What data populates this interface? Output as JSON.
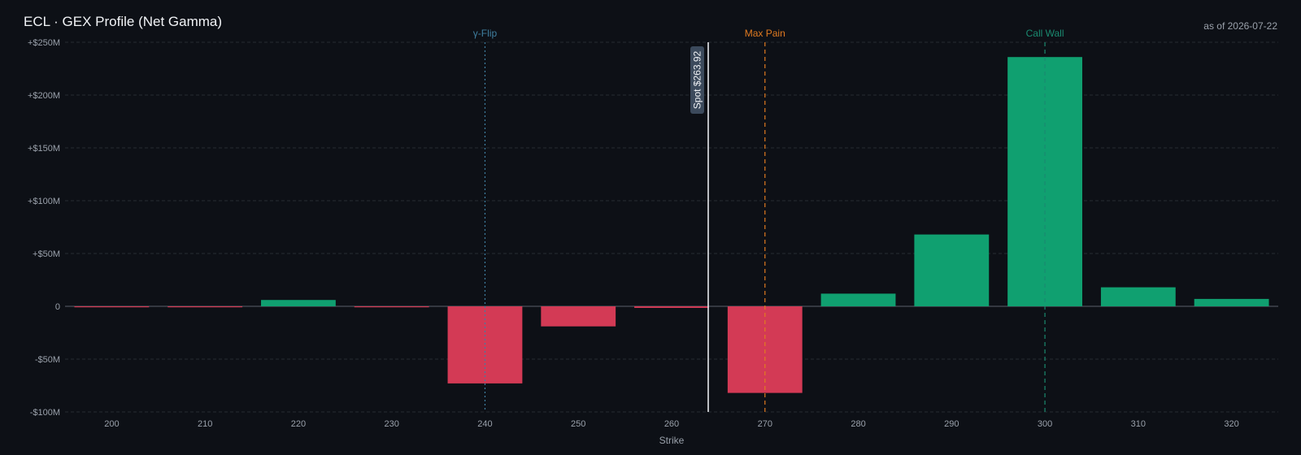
{
  "header": {
    "title": "ECL · GEX Profile (Net Gamma)",
    "as_of": "as of 2026-07-22"
  },
  "colors": {
    "background": "#0d1016",
    "positive": "#10a070",
    "negative": "#d33a55",
    "gamma_flip": "#3f7fa0",
    "max_pain": "#e07a20",
    "call_wall": "#1a8a70",
    "spot": "#e8eaee",
    "spot_badge": "#3c4a5c"
  },
  "chart_data": {
    "type": "bar",
    "title": "ECL · GEX Profile (Net Gamma)",
    "xlabel": "Strike",
    "ylabel": "",
    "categories": [
      200,
      210,
      220,
      230,
      240,
      250,
      260,
      270,
      280,
      290,
      300,
      310,
      320
    ],
    "values": [
      -0.5,
      -0.3,
      6,
      -0.4,
      -73,
      -19,
      -1.5,
      -82,
      12,
      68,
      236,
      18,
      7
    ],
    "ylim": [
      -100,
      250
    ],
    "yticks": [
      250,
      200,
      150,
      100,
      50,
      0,
      -50,
      -100
    ],
    "ytick_labels": [
      "+$250M",
      "+$200M",
      "+$150M",
      "+$100M",
      "+$50M",
      "0",
      "-$50M",
      "-$100M"
    ],
    "xtick_labels": [
      "200",
      "210",
      "220",
      "230",
      "240",
      "250",
      "260",
      "270",
      "280",
      "290",
      "300",
      "310",
      "320"
    ],
    "grid": true,
    "reference_lines": [
      {
        "name": "γ-Flip",
        "x": 240,
        "style": "dotted"
      },
      {
        "name": "Max Pain",
        "x": 270,
        "style": "dashed"
      },
      {
        "name": "Call Wall",
        "x": 300,
        "style": "dashed"
      }
    ],
    "spot": {
      "x": 263.92,
      "label": "Spot $263.92"
    }
  }
}
